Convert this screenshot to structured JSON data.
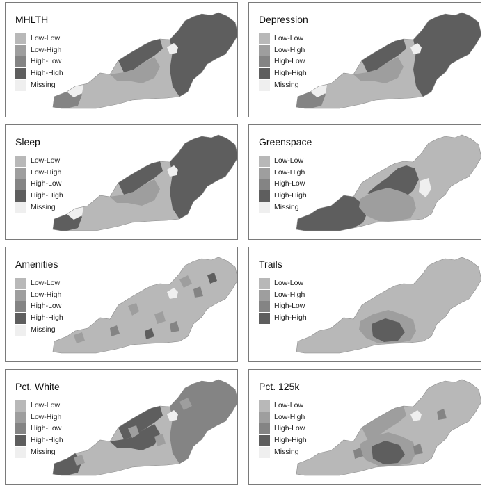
{
  "colors": {
    "low_low": "#b8b8b8",
    "low_high": "#9e9e9e",
    "high_low": "#848484",
    "high_high": "#5e5e5e",
    "missing": "#efefef"
  },
  "legend_keys": [
    "low_low",
    "low_high",
    "high_low",
    "high_high",
    "missing"
  ],
  "legend_labels": {
    "low_low": "Low-Low",
    "low_high": "Low-High",
    "high_low": "High-Low",
    "high_high": "High-High",
    "missing": "Missing"
  },
  "panels": [
    {
      "title": "MHLTH",
      "show_missing": true,
      "pattern": {
        "base": "low_low",
        "patches": [
          {
            "cls": "high_high",
            "shape": "east"
          },
          {
            "cls": "high_high",
            "shape": "north"
          },
          {
            "cls": "low_high",
            "shape": "westcentral"
          },
          {
            "cls": "high_low",
            "shape": "westsw"
          },
          {
            "cls": "missing",
            "shape": "gapwest"
          },
          {
            "cls": "missing",
            "shape": "gapnorth"
          }
        ]
      }
    },
    {
      "title": "Depression",
      "show_missing": true,
      "pattern": {
        "base": "low_low",
        "patches": [
          {
            "cls": "high_high",
            "shape": "east"
          },
          {
            "cls": "high_high",
            "shape": "north"
          },
          {
            "cls": "low_high",
            "shape": "westcentral"
          },
          {
            "cls": "high_low",
            "shape": "westsw"
          },
          {
            "cls": "missing",
            "shape": "gapwest"
          },
          {
            "cls": "missing",
            "shape": "gapnorth"
          }
        ]
      }
    },
    {
      "title": "Sleep",
      "show_missing": true,
      "pattern": {
        "base": "low_low",
        "patches": [
          {
            "cls": "high_high",
            "shape": "east"
          },
          {
            "cls": "high_high",
            "shape": "north"
          },
          {
            "cls": "high_high",
            "shape": "westsw"
          },
          {
            "cls": "low_high",
            "shape": "westcentral"
          },
          {
            "cls": "missing",
            "shape": "gapwest"
          },
          {
            "cls": "missing",
            "shape": "gapnorth"
          }
        ]
      }
    },
    {
      "title": "Greenspace",
      "show_missing": true,
      "pattern": {
        "base": "low_low",
        "patches": [
          {
            "cls": "high_high",
            "shape": "westblock"
          },
          {
            "cls": "high_high",
            "shape": "centerblock"
          },
          {
            "cls": "low_high",
            "shape": "centerring"
          },
          {
            "cls": "missing",
            "shape": "gapcenter"
          }
        ]
      }
    },
    {
      "title": "Amenities",
      "show_missing": true,
      "pattern": {
        "base": "low_low",
        "patches": [
          {
            "cls": "low_high",
            "shape": "scatter1"
          },
          {
            "cls": "high_low",
            "shape": "scatter2"
          },
          {
            "cls": "high_high",
            "shape": "scatter3"
          },
          {
            "cls": "missing",
            "shape": "gapnorth"
          }
        ]
      }
    },
    {
      "title": "Trails",
      "show_missing": false,
      "pattern": {
        "base": "low_low",
        "patches": [
          {
            "cls": "low_high",
            "shape": "centerring"
          },
          {
            "cls": "high_high",
            "shape": "centerblock2"
          }
        ]
      }
    },
    {
      "title": "Pct. White",
      "show_missing": true,
      "pattern": {
        "base": "low_low",
        "patches": [
          {
            "cls": "high_high",
            "shape": "westsw"
          },
          {
            "cls": "high_high",
            "shape": "westcentral"
          },
          {
            "cls": "high_high",
            "shape": "north"
          },
          {
            "cls": "high_low",
            "shape": "east"
          },
          {
            "cls": "low_high",
            "shape": "scatter1"
          },
          {
            "cls": "missing",
            "shape": "gapnorth"
          }
        ]
      }
    },
    {
      "title": "Pct. 125k",
      "show_missing": true,
      "pattern": {
        "base": "low_low",
        "patches": [
          {
            "cls": "low_high",
            "shape": "centerring"
          },
          {
            "cls": "high_high",
            "shape": "centerblock2"
          },
          {
            "cls": "high_low",
            "shape": "scatter2"
          },
          {
            "cls": "low_high",
            "shape": "north"
          },
          {
            "cls": "missing",
            "shape": "gapnorth"
          }
        ]
      }
    }
  ]
}
